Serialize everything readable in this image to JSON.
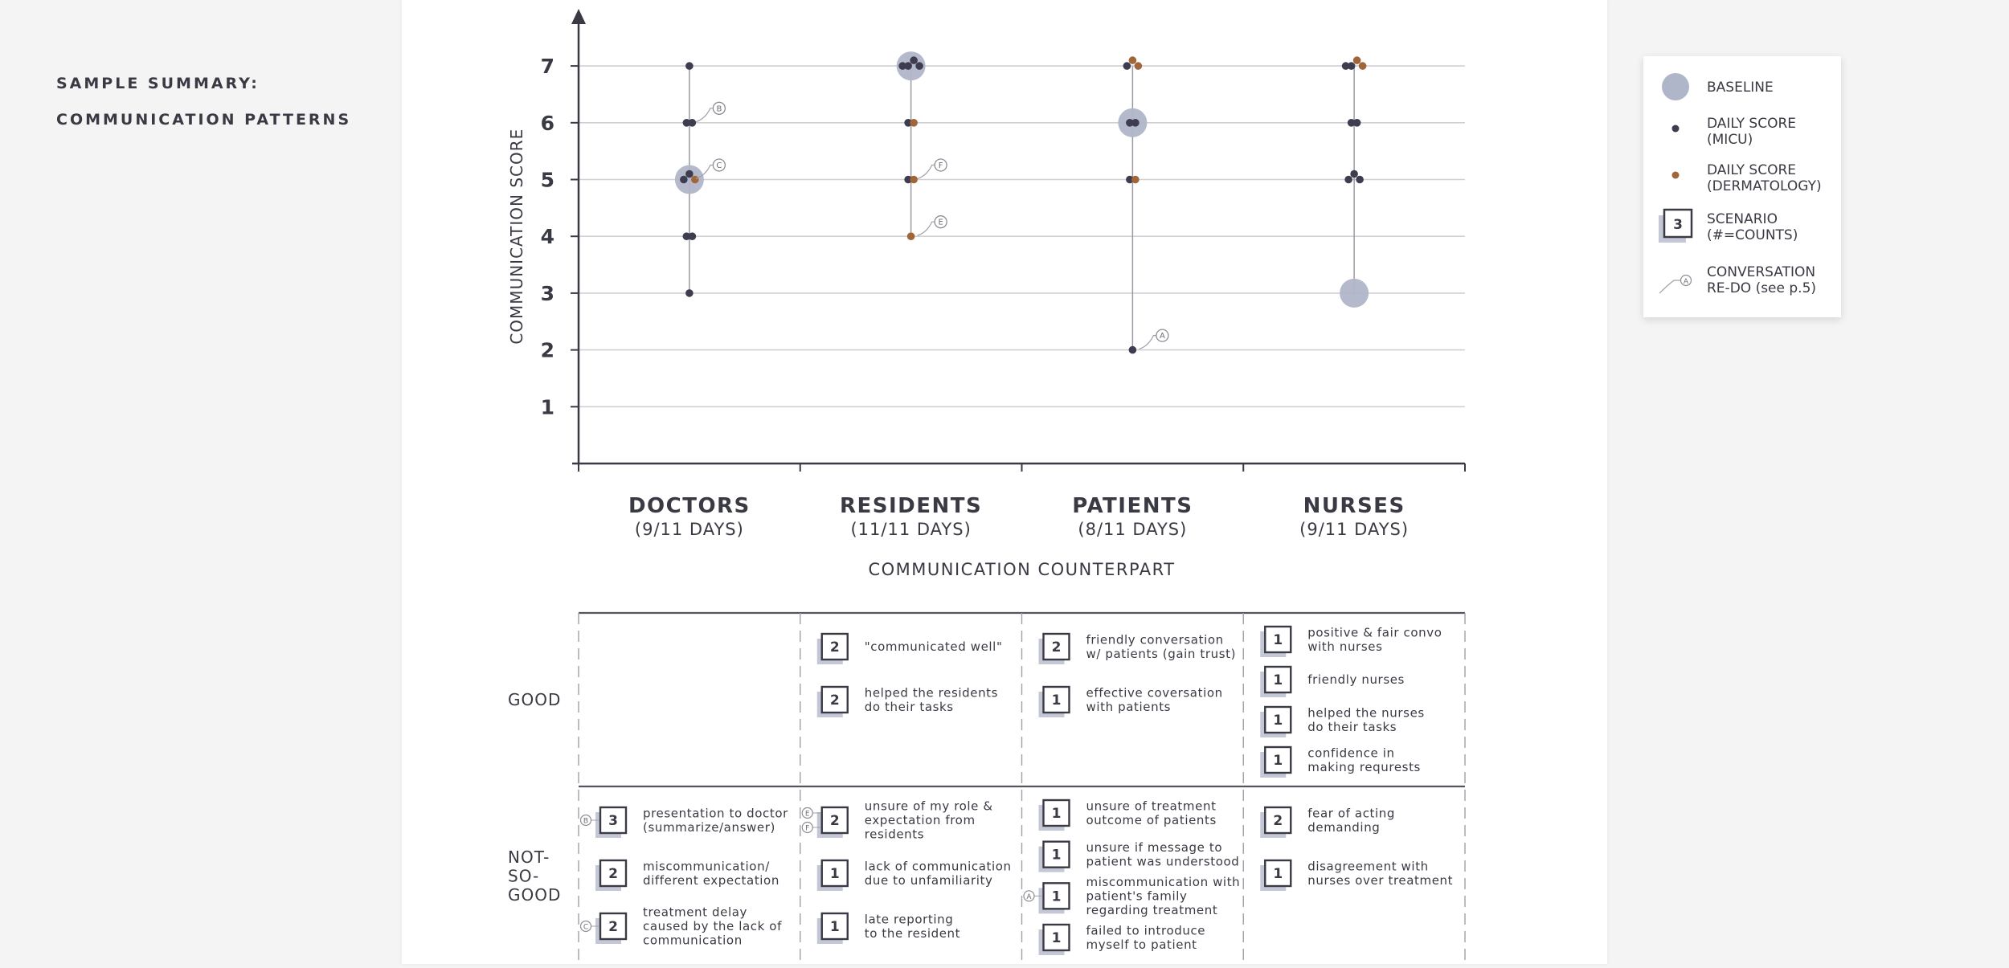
{
  "sidebar": {
    "title_line1": "SAMPLE SUMMARY:",
    "title_line2": "COMMUNICATION PATTERNS"
  },
  "legend": {
    "baseline": "BASELINE",
    "micu_1": "DAILY SCORE",
    "micu_2": "(MICU)",
    "derm_1": "DAILY SCORE",
    "derm_2": "(DERMATOLOGY)",
    "scen_count": "3",
    "scen_1": "SCENARIO",
    "scen_2": "(#=COUNTS)",
    "redo_mark": "A",
    "redo_1": "CONVERSATION",
    "redo_2": "RE-DO (see p.5)"
  },
  "colors": {
    "micu": "#3d3d4f",
    "derm": "#a0663a",
    "baseline": "#b0b6c9",
    "grid": "#d0d0d4",
    "axis": "#3a3a44"
  },
  "chart_data": {
    "type": "scatter",
    "ylabel": "COMMUNICATION SCORE",
    "xlabel": "COMMUNICATION COUNTERPART",
    "ylim": [
      0,
      7
    ],
    "yticks": [
      1,
      2,
      3,
      4,
      5,
      6,
      7
    ],
    "grid": true,
    "legend_position": "right",
    "categories": [
      {
        "name": "DOCTORS",
        "days": "(9/11 DAYS)",
        "baseline": 5,
        "micu": [
          7,
          6,
          6,
          5,
          5,
          4,
          4,
          3
        ],
        "derm": [
          5
        ],
        "redo": [
          {
            "label": "B",
            "score": 6
          },
          {
            "label": "C",
            "score": 5
          }
        ]
      },
      {
        "name": "RESIDENTS",
        "days": "(11/11 DAYS)",
        "baseline": 7,
        "micu": [
          7,
          7,
          7,
          7,
          6,
          5
        ],
        "derm": [
          6,
          5,
          4
        ],
        "redo": [
          {
            "label": "F",
            "score": 5
          },
          {
            "label": "E",
            "score": 4
          }
        ]
      },
      {
        "name": "PATIENTS",
        "days": "(8/11 DAYS)",
        "baseline": 6,
        "micu": [
          7,
          6,
          6,
          5,
          2
        ],
        "derm": [
          7,
          7,
          5
        ],
        "redo": [
          {
            "label": "A",
            "score": 2
          }
        ]
      },
      {
        "name": "NURSES",
        "days": "(9/11 DAYS)",
        "baseline": 3,
        "micu": [
          7,
          7,
          6,
          6,
          5,
          5,
          5
        ],
        "derm": [
          7,
          7
        ],
        "redo": []
      }
    ]
  },
  "table": {
    "rows": [
      {
        "label": "GOOD"
      },
      {
        "label_lines": [
          "NOT-",
          "SO-",
          "GOOD"
        ]
      }
    ],
    "good": [
      [],
      [
        {
          "n": "2",
          "lines": [
            "\"communicated well\""
          ]
        },
        {
          "n": "2",
          "lines": [
            "helped the residents",
            "do their tasks"
          ]
        }
      ],
      [
        {
          "n": "2",
          "lines": [
            "friendly conversation",
            "w/ patients (gain trust)"
          ]
        },
        {
          "n": "1",
          "lines": [
            "effective coversation",
            "with patients"
          ]
        }
      ],
      [
        {
          "n": "1",
          "lines": [
            "positive & fair convo",
            "with nurses"
          ]
        },
        {
          "n": "1",
          "lines": [
            "friendly nurses"
          ]
        },
        {
          "n": "1",
          "lines": [
            "helped the nurses",
            "do their tasks"
          ]
        },
        {
          "n": "1",
          "lines": [
            "confidence in",
            "making requrests"
          ]
        }
      ]
    ],
    "notgood": [
      [
        {
          "n": "3",
          "lines": [
            "presentation to doctor",
            "(summarize/answer)"
          ],
          "redo": [
            "B"
          ]
        },
        {
          "n": "2",
          "lines": [
            "miscommunication/",
            "different expectation"
          ]
        },
        {
          "n": "2",
          "lines": [
            "treatment delay",
            "caused by the lack of",
            "communication"
          ],
          "redo": [
            "C"
          ]
        }
      ],
      [
        {
          "n": "2",
          "lines": [
            "unsure of my role &",
            "expectation from",
            "residents"
          ],
          "redo": [
            "E",
            "F"
          ]
        },
        {
          "n": "1",
          "lines": [
            "lack of communication",
            "due to unfamiliarity"
          ]
        },
        {
          "n": "1",
          "lines": [
            "late reporting",
            "to the resident"
          ]
        }
      ],
      [
        {
          "n": "1",
          "lines": [
            "unsure of treatment",
            "outcome of patients"
          ]
        },
        {
          "n": "1",
          "lines": [
            "unsure if message to",
            "patient was understood"
          ]
        },
        {
          "n": "1",
          "lines": [
            "miscommunication with",
            "patient's family",
            "regarding treatment"
          ],
          "redo": [
            "A"
          ]
        },
        {
          "n": "1",
          "lines": [
            "failed to introduce",
            "myself to patient"
          ]
        }
      ],
      [
        {
          "n": "2",
          "lines": [
            "fear of acting",
            "demanding"
          ]
        },
        {
          "n": "1",
          "lines": [
            "disagreement with",
            "nurses over treatment"
          ]
        }
      ]
    ]
  }
}
